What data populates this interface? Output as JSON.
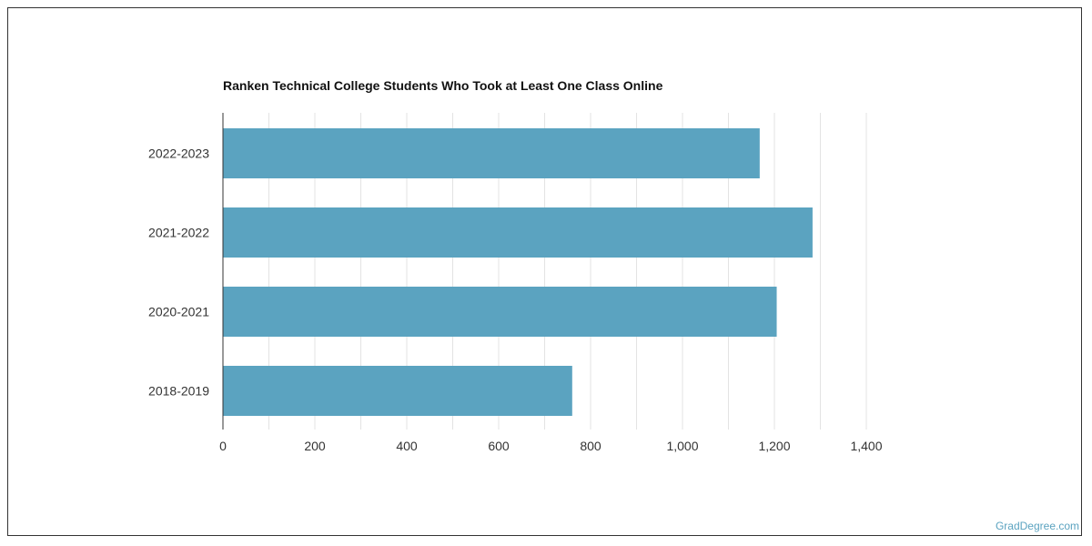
{
  "chart_data": {
    "type": "bar",
    "orientation": "horizontal",
    "title": "Ranken Technical College Students Who Took at Least One Class Online",
    "categories": [
      "2022-2023",
      "2021-2022",
      "2020-2021",
      "2018-2019"
    ],
    "values": [
      1168,
      1283,
      1205,
      760
    ],
    "xlim": [
      0,
      1400
    ],
    "ticks": [
      0,
      200,
      400,
      600,
      800,
      "1,000",
      "1,200",
      "1,400"
    ],
    "grid": true,
    "bar_color": "#5ba3c0"
  },
  "watermark": "GradDegree.com"
}
